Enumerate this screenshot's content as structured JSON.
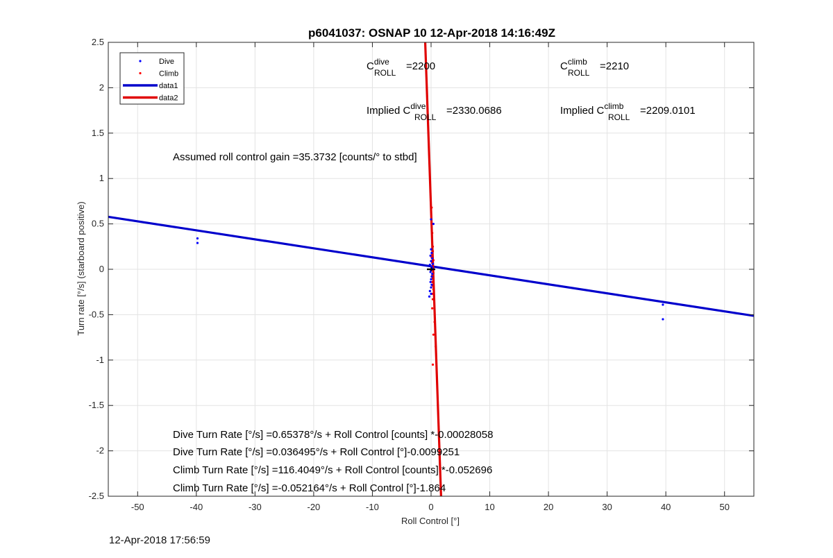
{
  "chart_data": {
    "type": "scatter",
    "title": "p6041037: OSNAP 10 12-Apr-2018 14:16:49Z",
    "xlabel": "Roll Control [°]",
    "ylabel": "Turn rate [°/s] (starboard positive)",
    "xlim": [
      -55,
      55
    ],
    "ylim": [
      -2.5,
      2.5
    ],
    "xticks": [
      -50,
      -40,
      -30,
      -20,
      -10,
      0,
      10,
      20,
      30,
      40,
      50
    ],
    "yticks": [
      -2.5,
      -2,
      -1.5,
      -1,
      -0.5,
      0,
      0.5,
      1,
      1.5,
      2,
      2.5
    ],
    "grid": true,
    "legend_position": "top-left",
    "series": [
      {
        "name": "Dive",
        "kind": "scatter",
        "color": "#0000ff",
        "points": [
          [
            -39.8,
            0.34
          ],
          [
            -39.8,
            0.29
          ],
          [
            39.5,
            -0.39
          ],
          [
            39.5,
            -0.55
          ],
          [
            0.0,
            0.22
          ],
          [
            0.1,
            0.18
          ],
          [
            -0.1,
            0.15
          ],
          [
            0.2,
            0.12
          ],
          [
            0.0,
            0.09
          ],
          [
            0.3,
            0.06
          ],
          [
            -0.2,
            0.05
          ],
          [
            0.1,
            0.03
          ],
          [
            0.2,
            0.01
          ],
          [
            0.0,
            -0.01
          ],
          [
            -0.1,
            -0.03
          ],
          [
            0.2,
            -0.05
          ],
          [
            0.1,
            -0.08
          ],
          [
            0.0,
            -0.11
          ],
          [
            -0.1,
            -0.14
          ],
          [
            0.1,
            -0.17
          ],
          [
            0.0,
            -0.2
          ],
          [
            -0.2,
            -0.24
          ],
          [
            0.0,
            -0.27
          ],
          [
            -0.3,
            -0.3
          ],
          [
            0.4,
            0.5
          ],
          [
            0.0,
            0.55
          ]
        ]
      },
      {
        "name": "Climb",
        "kind": "scatter",
        "color": "#ff0000",
        "points": [
          [
            0.1,
            0.68
          ],
          [
            0.2,
            0.4
          ],
          [
            0.3,
            0.25
          ],
          [
            0.3,
            0.2
          ],
          [
            0.2,
            0.16
          ],
          [
            0.1,
            0.13
          ],
          [
            0.4,
            0.1
          ],
          [
            0.2,
            0.07
          ],
          [
            0.3,
            0.04
          ],
          [
            0.1,
            0.0
          ],
          [
            0.4,
            -0.04
          ],
          [
            0.2,
            -0.07
          ],
          [
            0.3,
            -0.1
          ],
          [
            0.2,
            -0.14
          ],
          [
            0.3,
            -0.18
          ],
          [
            0.4,
            -0.22
          ],
          [
            0.2,
            -0.27
          ],
          [
            0.3,
            -0.33
          ],
          [
            0.2,
            -0.43
          ],
          [
            0.6,
            -0.58
          ],
          [
            0.4,
            -0.72
          ],
          [
            0.3,
            -1.05
          ],
          [
            0.8,
            -0.85
          ]
        ]
      },
      {
        "name": "data1",
        "kind": "line",
        "color": "#0000cc",
        "points": [
          [
            -55,
            0.578
          ],
          [
            55,
            -0.513
          ]
        ]
      },
      {
        "name": "data2",
        "kind": "line",
        "color": "#e00000",
        "points": [
          [
            -1.0,
            2.5
          ],
          [
            1.7,
            -2.5
          ]
        ]
      }
    ],
    "markers": [
      {
        "shape": "cross",
        "color": "#000000",
        "x": 0.0,
        "y": 0.0
      }
    ],
    "annotations": [
      {
        "id": "cdive",
        "base": "C",
        "sup": "dive",
        "sub": "ROLL",
        "rest": "=2200"
      },
      {
        "id": "cclimb",
        "base": "C",
        "sup": "climb",
        "sub": "ROLL",
        "rest": "=2210"
      },
      {
        "id": "impl_dive",
        "pre": "Implied ",
        "base": "C",
        "sup": "dive",
        "sub": "ROLL",
        "rest": "=2330.0686"
      },
      {
        "id": "impl_climb",
        "pre": "Implied ",
        "base": "C",
        "sup": "climb",
        "sub": "ROLL",
        "rest": "=2209.0101"
      },
      {
        "id": "gain",
        "text": "Assumed roll control gain =35.3732 [counts/° to stbd]"
      },
      {
        "id": "eq1",
        "text": "Dive Turn Rate [°/s] =0.65378°/s + Roll Control [counts] *-0.00028058"
      },
      {
        "id": "eq2",
        "text": "Dive Turn Rate [°/s] =0.036495°/s + Roll Control [°]-0.0099251"
      },
      {
        "id": "eq3",
        "text": "Climb Turn Rate [°/s] =116.4049°/s + Roll Control [counts] *-0.052696"
      },
      {
        "id": "eq4",
        "text": "Climb Turn Rate [°/s] =-0.052164°/s + Roll Control [°]-1.864"
      }
    ]
  },
  "footer": {
    "timestamp": "12-Apr-2018 17:56:59"
  }
}
